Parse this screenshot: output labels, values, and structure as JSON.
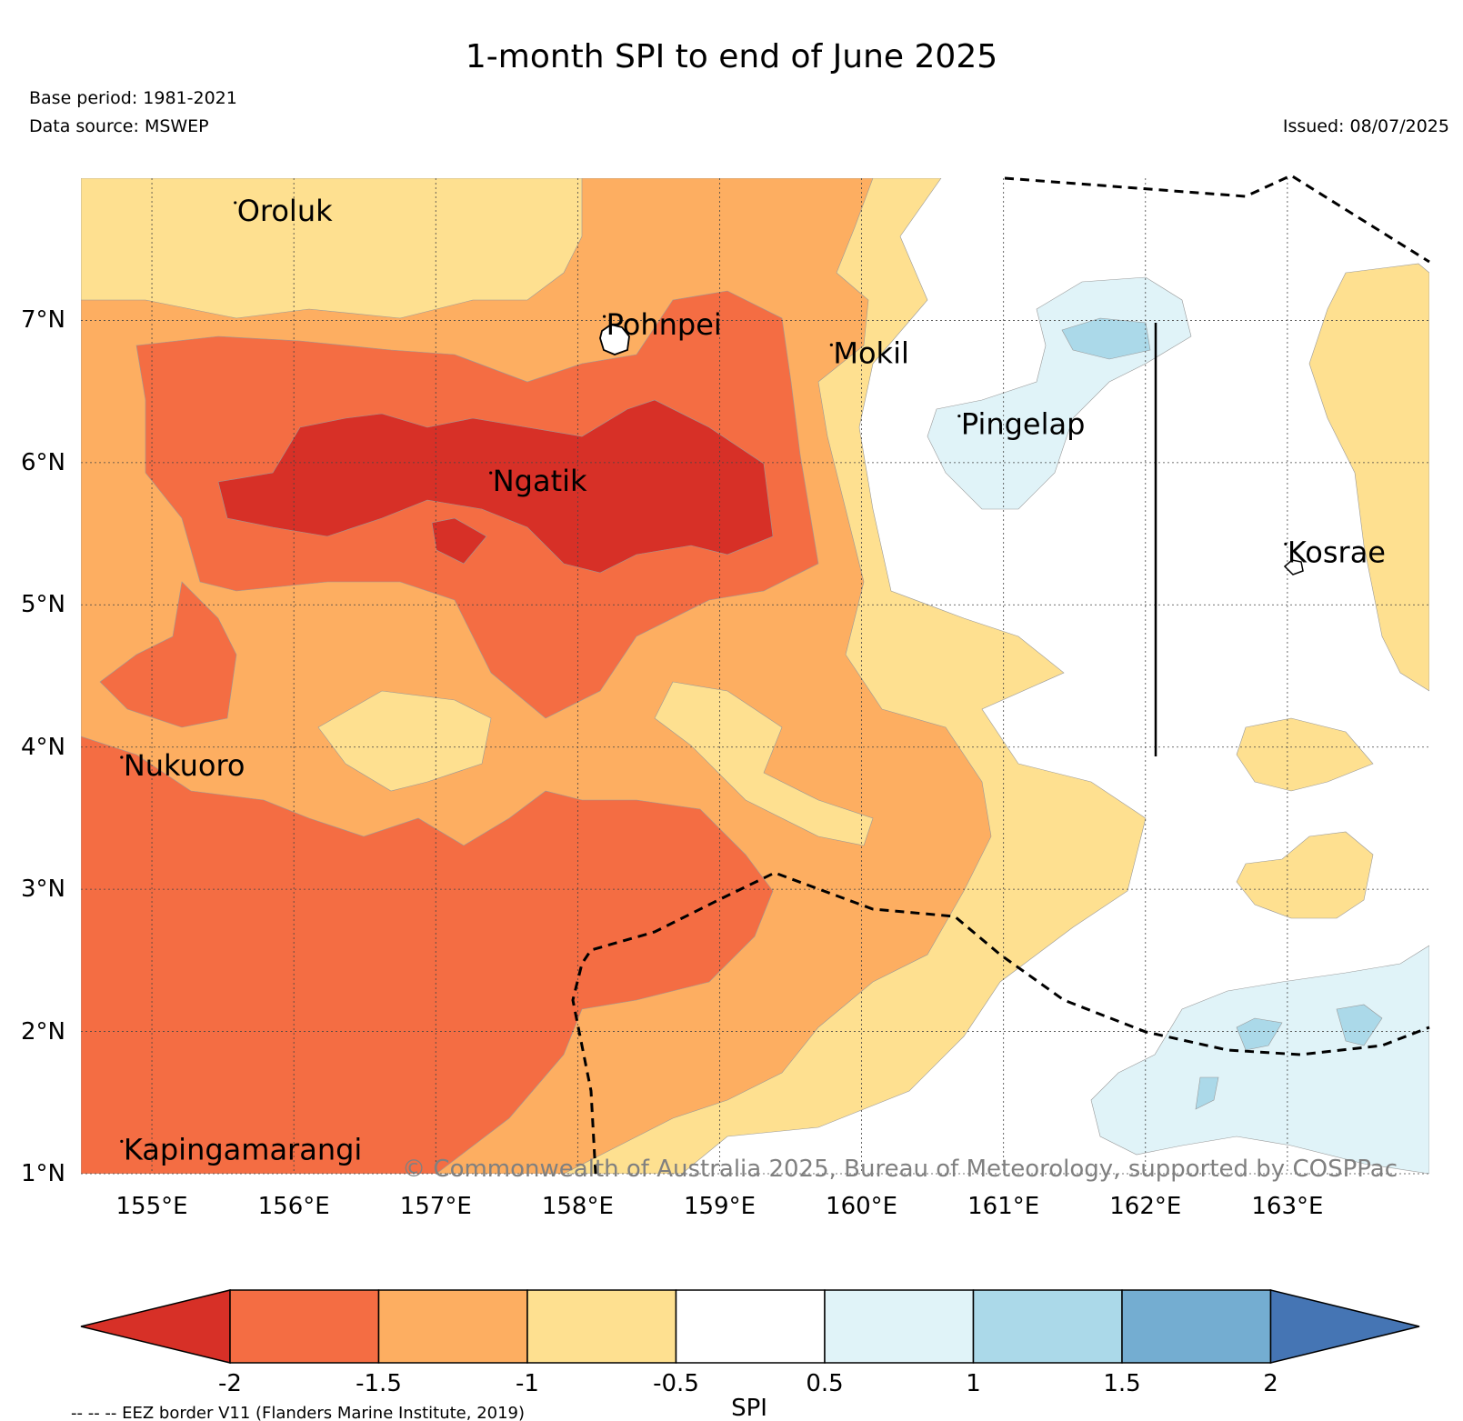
{
  "title": "1-month SPI to end of June 2025",
  "base_period": "Base period: 1981-2021",
  "data_source": "Data source: MSWEP",
  "issued": "Issued: 08/07/2025",
  "copyright": "© Commonwealth of Australia 2025, Bureau of Meteorology, supported by COSPPac",
  "eez_note": "-- -- -- EEZ border V11 (Flanders Marine Institute, 2019)",
  "map": {
    "lon_range": [
      154.5,
      164.0
    ],
    "lat_range": [
      1.0,
      8.0
    ],
    "lat_ticks": [
      "7°N",
      "6°N",
      "5°N",
      "4°N",
      "3°N",
      "2°N",
      "1°N"
    ],
    "lon_ticks": [
      "155°E",
      "156°E",
      "157°E",
      "158°E",
      "159°E",
      "160°E",
      "161°E",
      "162°E",
      "163°E"
    ],
    "places": [
      {
        "name": "Oroluk",
        "lon": 155.6,
        "lat": 7.7
      },
      {
        "name": "Pohnpei",
        "lon": 158.2,
        "lat": 6.9
      },
      {
        "name": "Mokil",
        "lon": 159.8,
        "lat": 6.7
      },
      {
        "name": "Pingelap",
        "lon": 160.7,
        "lat": 6.2
      },
      {
        "name": "Ngatik",
        "lon": 157.4,
        "lat": 5.8
      },
      {
        "name": "Kosrae",
        "lon": 163.0,
        "lat": 5.3
      },
      {
        "name": "Nukuoro",
        "lon": 154.8,
        "lat": 3.8
      },
      {
        "name": "Kapingamarangi",
        "lon": 154.8,
        "lat": 1.1
      }
    ],
    "colors": {
      "lt_-2": "#d73027",
      "-2_-1.5": "#f46d43",
      "-1.5_-1": "#fdae61",
      "-1_-0.5": "#fee090",
      "-0.5_0.5": "#ffffff",
      "0.5_1": "#e0f3f8",
      "1_1.5": "#abd9e9",
      "1.5_2": "#74add1",
      "gt_2": "#4575b4"
    }
  },
  "colorbar": {
    "label": "SPI",
    "ticks": [
      "-2",
      "-1.5",
      "-1",
      "-0.5",
      "0.5",
      "1",
      "1.5",
      "2"
    ],
    "colors": [
      "#d73027",
      "#f46d43",
      "#fdae61",
      "#fee090",
      "#ffffff",
      "#e0f3f8",
      "#abd9e9",
      "#74add1",
      "#4575b4"
    ]
  }
}
